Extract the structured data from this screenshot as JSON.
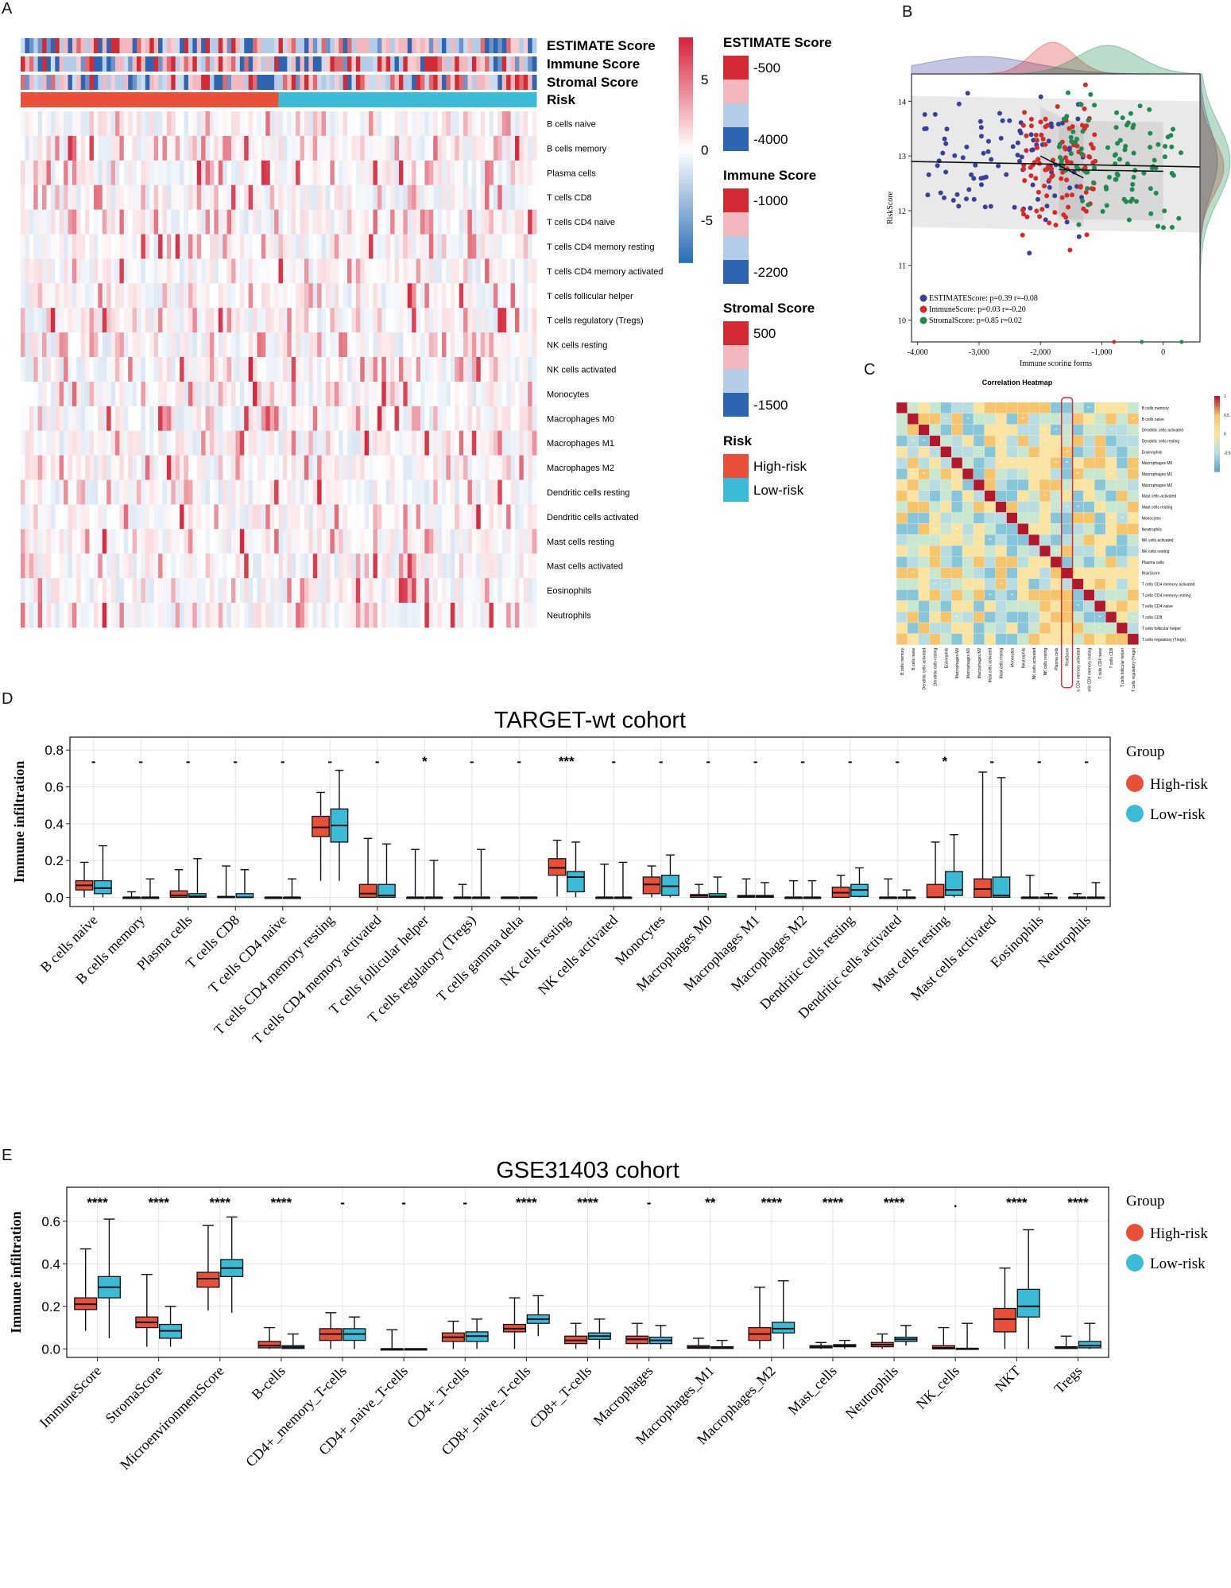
{
  "figure": {
    "panel_labels": [
      "A",
      "B",
      "C",
      "D",
      "E"
    ]
  },
  "colors": {
    "high_risk": "#e8503a",
    "low_risk": "#3cbbd6",
    "heat_red": "#d7263d",
    "heat_blue": "#2d6fb8",
    "estimate_pts": "#3a3f99",
    "immune_pts": "#d62a2a",
    "stromal_pts": "#1f8a50"
  },
  "chart_data": [
    {
      "id": "A",
      "type": "heatmap",
      "annotation_rows": [
        "ESTIMATE Score",
        "Immune Score",
        "Stromal Score",
        "Risk"
      ],
      "rows": [
        "B cells naive",
        "B cells memory",
        "Plasma cells",
        "T cells CD8",
        "T cells CD4 naive",
        "T cells CD4 memory resting",
        "T cells CD4 memory activated",
        "T cells follicular helper",
        "T cells regulatory (Tregs)",
        "NK cells resting",
        "NK cells activated",
        "Monocytes",
        "Macrophages M0",
        "Macrophages M1",
        "Macrophages M2",
        "Dendritic cells resting",
        "Dendritic cells activated",
        "Mast cells resting",
        "Mast cells activated",
        "Eosinophils",
        "Neutrophils"
      ],
      "colorbar_ticks": [
        "5",
        "0",
        "-5"
      ],
      "colorbar_range": [
        -8,
        8
      ],
      "legends": [
        {
          "title": "ESTIMATE Score",
          "entries": [
            "-500",
            "-4000"
          ],
          "colors": [
            "#d42a34",
            "#f2b8bd",
            "#b3cce8",
            "#2e64b0"
          ]
        },
        {
          "title": "Immune Score",
          "entries": [
            "-1000",
            "-2200"
          ],
          "colors": [
            "#d42a34",
            "#f2b8bd",
            "#b3cce8",
            "#2e64b0"
          ]
        },
        {
          "title": "Stromal Score",
          "entries": [
            "500",
            "-1500"
          ],
          "colors": [
            "#d42a34",
            "#f2b8bd",
            "#b3cce8",
            "#2e64b0"
          ]
        },
        {
          "title": "Risk",
          "entries": [
            "High-risk",
            "Low-risk"
          ],
          "colors": [
            "#e8503a",
            "#3cbbd6"
          ]
        }
      ],
      "n_samples": 120,
      "high_risk_fraction": 0.5
    },
    {
      "id": "B",
      "type": "scatter",
      "xlabel": "Immune scoring forms",
      "ylabel": "RiskScore",
      "xlim": [
        -4100,
        600
      ],
      "ylim": [
        9.6,
        14.5
      ],
      "xticks": [
        "-4,000",
        "-3,000",
        "-2,000",
        "-1,000",
        "0"
      ],
      "xtick_values": [
        -4000,
        -3000,
        -2000,
        -1000,
        0
      ],
      "yticks": [
        "10",
        "11",
        "12",
        "13",
        "14"
      ],
      "ytick_values": [
        10,
        11,
        12,
        13,
        14
      ],
      "series": [
        {
          "name": "ESTIMATEScore",
          "stat": "ESTIMATEScore: p=0.39 r=-0.08",
          "x_range": [
            -3900,
            -1300
          ],
          "y_center": 12.9,
          "fit": [
            [
              -4100,
              12.9
            ],
            [
              600,
              12.8
            ]
          ]
        },
        {
          "name": "ImmuneScore",
          "stat": "ImmuneScore: p=0.03 r=-0.20",
          "x_range": [
            -2300,
            -1100
          ],
          "y_center": 12.8,
          "fit": [
            [
              -2000,
              13.0
            ],
            [
              -1300,
              12.6
            ]
          ]
        },
        {
          "name": "StromalScore",
          "stat": "StromalScore: p=0.85 r=0.02",
          "x_range": [
            -1700,
            300
          ],
          "y_center": 12.9,
          "fit": [
            [
              -1700,
              12.75
            ],
            [
              0,
              12.72
            ]
          ]
        }
      ]
    },
    {
      "id": "C",
      "type": "heatmap",
      "title": "Correlation Heatmap",
      "variables": [
        "B cells memory",
        "B cells naive",
        "Dendritic cells activated",
        "Dendritic cells resting",
        "Eosinophils",
        "Macrophages M0",
        "Macrophages M1",
        "Macrophages M2",
        "Mast cells activated",
        "Mast cells resting",
        "Monocytes",
        "Neutrophils",
        "NK cells activated",
        "NK cells resting",
        "Plasma cells",
        "RiskScore",
        "T cells CD4 memory activated",
        "T cells CD4 memory resting",
        "T cells CD4 naive",
        "T cells CD8",
        "T cells follicular helper",
        "T cells regulatory (Tregs)"
      ],
      "highlight": "RiskScore",
      "colorbar_ticks": [
        "1",
        "0.5",
        "0",
        "-0.5"
      ],
      "colorbar_values": [
        1,
        0.5,
        0,
        -0.5
      ]
    },
    {
      "id": "D",
      "type": "box",
      "title": "TARGET-wt cohort",
      "ylabel": "Immune infiltration",
      "ylim": [
        -0.05,
        0.87
      ],
      "yticks": [
        "0.0",
        "0.2",
        "0.4",
        "0.6",
        "0.8"
      ],
      "ytick_values": [
        0,
        0.2,
        0.4,
        0.6,
        0.8
      ],
      "legend_title": "Group",
      "legend_entries": [
        "High-risk",
        "Low-risk"
      ],
      "categories": [
        "B cells naive",
        "B cells memory",
        "Plasma cells",
        "T cells CD8",
        "T cells CD4 naive",
        "T cells CD4 memory resting",
        "T cells CD4 memory activated",
        "T cells follicular helper",
        "T cells regulatory (Tregs)",
        "T cells gamma delta",
        "NK cells resting",
        "NK cells activated",
        "Monocytes",
        "Macrophages M0",
        "Macrophages M1",
        "Macrophages M2",
        "Dendritic cells resting",
        "Dendritic cells activated",
        "Mast cells resting",
        "Mast cells activated",
        "Eosinophils",
        "Neutrophils"
      ],
      "significance": [
        "-",
        "-",
        "-",
        "-",
        "-",
        "-",
        "-",
        "*",
        "-",
        "-",
        "***",
        "-",
        "-",
        "-",
        "-",
        "-",
        "-",
        "-",
        "*",
        "-",
        "-",
        "-"
      ],
      "series": [
        {
          "name": "High-risk",
          "boxes": [
            [
              0,
              0.04,
              0.065,
              0.09,
              0.19
            ],
            [
              0,
              0,
              0,
              0,
              0.03
            ],
            [
              0,
              0,
              0.01,
              0.035,
              0.15
            ],
            [
              0,
              0,
              0,
              0.005,
              0.17
            ],
            [
              0,
              0,
              0,
              0,
              0
            ],
            [
              0.09,
              0.33,
              0.38,
              0.44,
              0.57
            ],
            [
              0,
              0,
              0.02,
              0.07,
              0.32
            ],
            [
              0,
              0,
              0,
              0,
              0.26
            ],
            [
              0,
              0,
              0,
              0,
              0.07
            ],
            [
              0,
              0,
              0,
              0,
              0
            ],
            [
              0.005,
              0.12,
              0.16,
              0.21,
              0.31
            ],
            [
              0,
              0,
              0,
              0,
              0.18
            ],
            [
              0,
              0.02,
              0.07,
              0.11,
              0.17
            ],
            [
              0,
              0,
              0.01,
              0.015,
              0.07
            ],
            [
              0,
              0,
              0.005,
              0.01,
              0.1
            ],
            [
              0,
              0,
              0,
              0,
              0.09
            ],
            [
              0,
              0,
              0.025,
              0.055,
              0.12
            ],
            [
              0,
              0,
              0,
              0,
              0.1
            ],
            [
              0,
              0,
              0,
              0.07,
              0.3
            ],
            [
              0,
              0,
              0.045,
              0.1,
              0.68
            ],
            [
              0,
              0,
              0,
              0,
              0.12
            ],
            [
              0,
              0,
              0,
              0,
              0.02
            ]
          ]
        },
        {
          "name": "Low-risk",
          "boxes": [
            [
              0,
              0.02,
              0.05,
              0.09,
              0.28
            ],
            [
              0,
              0,
              0,
              0,
              0.1
            ],
            [
              0,
              0,
              0.005,
              0.02,
              0.21
            ],
            [
              0,
              0,
              0,
              0.02,
              0.15
            ],
            [
              0,
              0,
              0,
              0,
              0.1
            ],
            [
              0.09,
              0.3,
              0.39,
              0.48,
              0.69
            ],
            [
              0,
              0,
              0.01,
              0.07,
              0.29
            ],
            [
              0,
              0,
              0,
              0,
              0.2
            ],
            [
              0,
              0,
              0,
              0,
              0.26
            ],
            [
              0,
              0,
              0,
              0,
              0
            ],
            [
              0,
              0.03,
              0.11,
              0.14,
              0.3
            ],
            [
              0,
              0,
              0,
              0,
              0.19
            ],
            [
              0,
              0.01,
              0.06,
              0.12,
              0.23
            ],
            [
              0,
              0,
              0.005,
              0.02,
              0.11
            ],
            [
              0,
              0,
              0.005,
              0.01,
              0.08
            ],
            [
              0,
              0,
              0,
              0,
              0.09
            ],
            [
              0,
              0.005,
              0.04,
              0.07,
              0.16
            ],
            [
              0,
              0,
              0,
              0,
              0.04
            ],
            [
              0,
              0.01,
              0.04,
              0.14,
              0.34
            ],
            [
              0,
              0,
              0.01,
              0.11,
              0.65
            ],
            [
              0,
              0,
              0,
              0,
              0.02
            ],
            [
              0,
              0,
              0,
              0,
              0.08
            ]
          ]
        }
      ]
    },
    {
      "id": "E",
      "type": "box",
      "title": "GSE31403 cohort",
      "ylabel": "Immune infiltration",
      "ylim": [
        -0.04,
        0.76
      ],
      "yticks": [
        "0.0",
        "0.2",
        "0.4",
        "0.6"
      ],
      "ytick_values": [
        0,
        0.2,
        0.4,
        0.6
      ],
      "legend_title": "Group",
      "legend_entries": [
        "High-risk",
        "Low-risk"
      ],
      "categories": [
        "ImmuneScore",
        "StromaScore",
        "MicroenvironmentScore",
        "B-cells",
        "CD4+_memory_T-cells",
        "CD4+_naive_T-cells",
        "CD4+_T-cells",
        "CD8+_naive_T-cells",
        "CD8+_T-cells",
        "Macrophages",
        "Macrophages_M1",
        "Macrophages_M2",
        "Mast_cells",
        "Neutrophils",
        "NK_cells",
        "NKT",
        "Tregs"
      ],
      "significance": [
        "****",
        "****",
        "****",
        "****",
        "-",
        "-",
        "-",
        "****",
        "****",
        "-",
        "**",
        "****",
        "****",
        "****",
        ".",
        "****",
        "****"
      ],
      "series": [
        {
          "name": "High-risk",
          "boxes": [
            [
              0.085,
              0.185,
              0.21,
              0.24,
              0.47
            ],
            [
              0.01,
              0.1,
              0.125,
              0.15,
              0.35
            ],
            [
              0.18,
              0.29,
              0.33,
              0.36,
              0.58
            ],
            [
              0,
              0.005,
              0.015,
              0.035,
              0.1
            ],
            [
              0,
              0.04,
              0.07,
              0.095,
              0.17
            ],
            [
              0,
              0,
              0,
              0,
              0.09
            ],
            [
              0,
              0.035,
              0.055,
              0.075,
              0.13
            ],
            [
              0,
              0.08,
              0.095,
              0.115,
              0.24
            ],
            [
              0,
              0.025,
              0.04,
              0.06,
              0.12
            ],
            [
              0,
              0.025,
              0.045,
              0.06,
              0.12
            ],
            [
              0,
              0.003,
              0.008,
              0.015,
              0.05
            ],
            [
              0,
              0.04,
              0.07,
              0.1,
              0.29
            ],
            [
              0,
              0.005,
              0.01,
              0.015,
              0.03
            ],
            [
              0,
              0.01,
              0.02,
              0.03,
              0.07
            ],
            [
              0,
              0,
              0.005,
              0.015,
              0.1
            ],
            [
              0,
              0.08,
              0.14,
              0.19,
              0.38
            ],
            [
              0,
              0.002,
              0.005,
              0.01,
              0.06
            ]
          ]
        },
        {
          "name": "Low-risk",
          "boxes": [
            [
              0.05,
              0.24,
              0.29,
              0.34,
              0.61
            ],
            [
              0.01,
              0.05,
              0.085,
              0.115,
              0.2
            ],
            [
              0.17,
              0.34,
              0.38,
              0.42,
              0.62
            ],
            [
              0,
              0.002,
              0.008,
              0.015,
              0.07
            ],
            [
              0,
              0.04,
              0.07,
              0.095,
              0.15
            ],
            [
              0,
              0,
              0,
              0,
              0
            ],
            [
              0,
              0.035,
              0.06,
              0.08,
              0.14
            ],
            [
              0.06,
              0.12,
              0.14,
              0.16,
              0.25
            ],
            [
              0,
              0.045,
              0.06,
              0.075,
              0.14
            ],
            [
              0,
              0.025,
              0.04,
              0.055,
              0.11
            ],
            [
              0,
              0.002,
              0.005,
              0.01,
              0.04
            ],
            [
              0,
              0.075,
              0.095,
              0.125,
              0.32
            ],
            [
              0,
              0.01,
              0.015,
              0.02,
              0.04
            ],
            [
              0.015,
              0.035,
              0.045,
              0.055,
              0.11
            ],
            [
              0,
              0,
              0.001,
              0.003,
              0.12
            ],
            [
              0,
              0.15,
              0.2,
              0.28,
              0.56
            ],
            [
              0,
              0.005,
              0.015,
              0.035,
              0.12
            ]
          ]
        }
      ]
    }
  ]
}
